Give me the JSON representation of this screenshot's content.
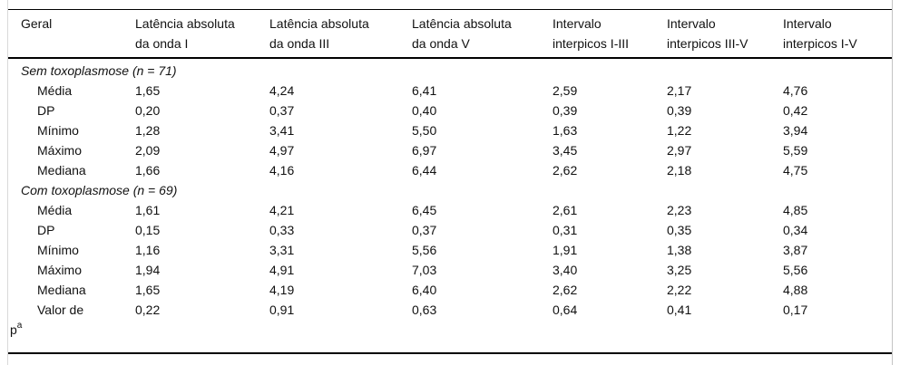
{
  "colors": {
    "background": "#ffffff",
    "text": "#111111",
    "horizontal_rule": "#000000",
    "frame_edge": "#cccccc"
  },
  "table": {
    "columns": [
      {
        "line1": "Geral",
        "line2": ""
      },
      {
        "line1": "Latência absoluta",
        "line2": "da onda I"
      },
      {
        "line1": "Latência absoluta",
        "line2": "da onda III"
      },
      {
        "line1": "Latência absoluta",
        "line2": "da onda V"
      },
      {
        "line1": "Intervalo",
        "line2": "interpicos I-III"
      },
      {
        "line1": "Intervalo",
        "line2": "interpicos III-V"
      },
      {
        "line1": "Intervalo",
        "line2": "interpicos I-V"
      }
    ],
    "sections": [
      {
        "title": "Sem toxoplasmose (n = 71)",
        "rows": [
          {
            "label": "Média",
            "values": [
              "1,65",
              "4,24",
              "6,41",
              "2,59",
              "2,17",
              "4,76"
            ]
          },
          {
            "label": "DP",
            "values": [
              "0,20",
              "0,37",
              "0,40",
              "0,39",
              "0,39",
              "0,42"
            ]
          },
          {
            "label": "Mínimo",
            "values": [
              "1,28",
              "3,41",
              "5,50",
              "1,63",
              "1,22",
              "3,94"
            ]
          },
          {
            "label": "Máximo",
            "values": [
              "2,09",
              "4,97",
              "6,97",
              "3,45",
              "2,97",
              "5,59"
            ]
          },
          {
            "label": "Mediana",
            "values": [
              "1,66",
              "4,16",
              "6,44",
              "2,62",
              "2,18",
              "4,75"
            ]
          }
        ]
      },
      {
        "title": "Com toxoplasmose (n = 69)",
        "rows": [
          {
            "label": "Média",
            "values": [
              "1,61",
              "4,21",
              "6,45",
              "2,61",
              "2,23",
              "4,85"
            ]
          },
          {
            "label": "DP",
            "values": [
              "0,15",
              "0,33",
              "0,37",
              "0,31",
              "0,35",
              "0,34"
            ]
          },
          {
            "label": "Mínimo",
            "values": [
              "1,16",
              "3,31",
              "5,56",
              "1,91",
              "1,38",
              "3,87"
            ]
          },
          {
            "label": "Máximo",
            "values": [
              "1,94",
              "4,91",
              "7,03",
              "3,40",
              "3,25",
              "5,56"
            ]
          },
          {
            "label": "Mediana",
            "values": [
              "1,65",
              "4,19",
              "6,40",
              "2,62",
              "2,22",
              "4,88"
            ]
          },
          {
            "label": "Valor de",
            "label_overflow": "p",
            "label_overflow_sup": "a",
            "values": [
              "0,22",
              "0,91",
              "0,63",
              "0,64",
              "0,41",
              "0,17"
            ]
          }
        ]
      }
    ]
  }
}
